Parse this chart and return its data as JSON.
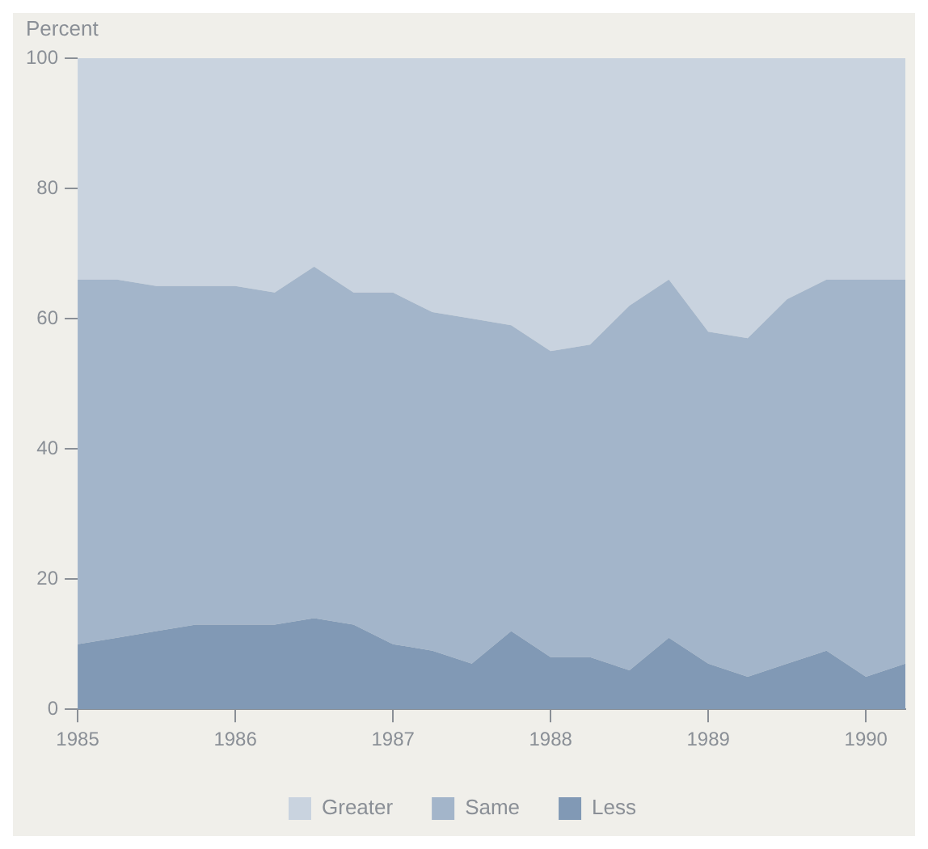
{
  "chart_data": {
    "type": "area",
    "stacked": true,
    "ylabel": "Percent",
    "x": [
      1985,
      1985.25,
      1985.5,
      1985.75,
      1986,
      1986.25,
      1986.5,
      1986.75,
      1987,
      1987.25,
      1987.5,
      1987.75,
      1988,
      1988.25,
      1988.5,
      1988.75,
      1989,
      1989.25,
      1989.5,
      1989.75,
      1990,
      1990.25
    ],
    "series": [
      {
        "name": "Less",
        "color": "#8199b5",
        "values": [
          10,
          11,
          12,
          13,
          13,
          13,
          14,
          13,
          10,
          9,
          7,
          12,
          8,
          8,
          6,
          11,
          7,
          5,
          7,
          9,
          5,
          7
        ]
      },
      {
        "name": "Same",
        "color": "#a3b5ca",
        "values": [
          56,
          55,
          53,
          52,
          52,
          51,
          54,
          51,
          54,
          52,
          53,
          47,
          47,
          48,
          56,
          55,
          51,
          52,
          56,
          57,
          61,
          59
        ]
      },
      {
        "name": "Greater",
        "color": "#c9d3df",
        "values": [
          34,
          34,
          35,
          35,
          35,
          36,
          32,
          36,
          36,
          39,
          40,
          41,
          45,
          44,
          38,
          34,
          42,
          43,
          37,
          34,
          34,
          34
        ]
      }
    ],
    "xlim": [
      1985,
      1990.25
    ],
    "xticks": [
      1985,
      1986,
      1987,
      1988,
      1989,
      1990
    ],
    "ylim": [
      0,
      100
    ],
    "yticks": [
      0,
      20,
      40,
      60,
      80,
      100
    ],
    "grid": false,
    "legend": "bottom"
  }
}
